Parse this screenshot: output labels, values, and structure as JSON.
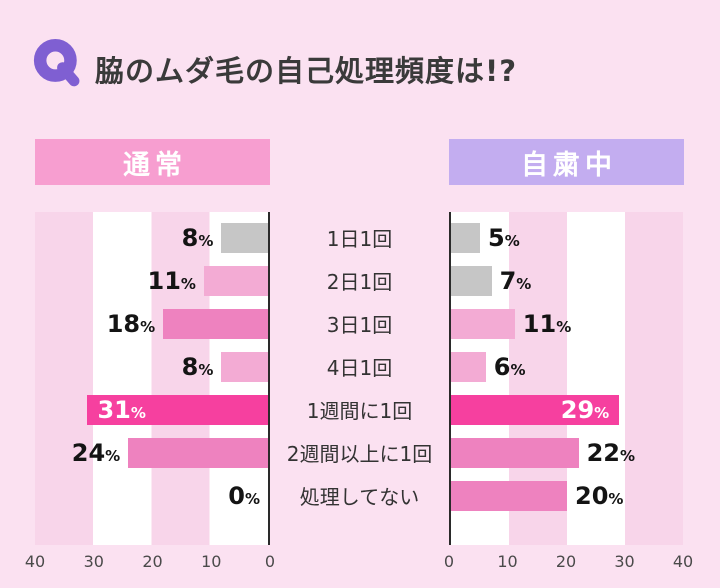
{
  "title": "脇のムダ毛の自己処理頻度は!?",
  "q_icon": "Q",
  "colors": {
    "page_bg": "#fbe1f1",
    "stripe_pink": "#f8d5ea",
    "stripe_white": "#ffffff",
    "left_header_bg": "#f79ed0",
    "right_header_bg": "#c3adf0",
    "q_icon_purple": "#7f5fd2",
    "title_text": "#3a3a3a",
    "gray": "#c6c6c6",
    "light_pink": "#f3abd4",
    "pink": "#ee82bf",
    "hot_pink": "#f6409f"
  },
  "chart_data": {
    "type": "bar",
    "orientation": "horizontal",
    "unit": "%",
    "xlim": [
      0,
      40
    ],
    "grid": "striped-bands-every-10",
    "categories": [
      "1日1回",
      "2日1回",
      "3日1回",
      "4日1回",
      "1週間に1回",
      "2週間以上に1回",
      "処理してない"
    ],
    "series": [
      {
        "name": "通常",
        "direction": "right-to-left",
        "values": [
          8,
          11,
          18,
          8,
          31,
          24,
          0
        ],
        "colors": [
          "gray",
          "light_pink",
          "pink",
          "light_pink",
          "hot_pink",
          "pink",
          "gray"
        ],
        "label_inside": [
          false,
          false,
          false,
          false,
          true,
          false,
          false
        ]
      },
      {
        "name": "自粛中",
        "direction": "left-to-right",
        "values": [
          5,
          7,
          11,
          6,
          29,
          22,
          20
        ],
        "colors": [
          "gray",
          "gray",
          "light_pink",
          "light_pink",
          "hot_pink",
          "pink",
          "pink"
        ],
        "label_inside": [
          false,
          false,
          false,
          false,
          true,
          false,
          false
        ]
      }
    ],
    "axis_ticks_left": [
      "40",
      "30",
      "20",
      "10",
      "0"
    ],
    "axis_ticks_right": [
      "0",
      "10",
      "20",
      "30",
      "40"
    ]
  }
}
